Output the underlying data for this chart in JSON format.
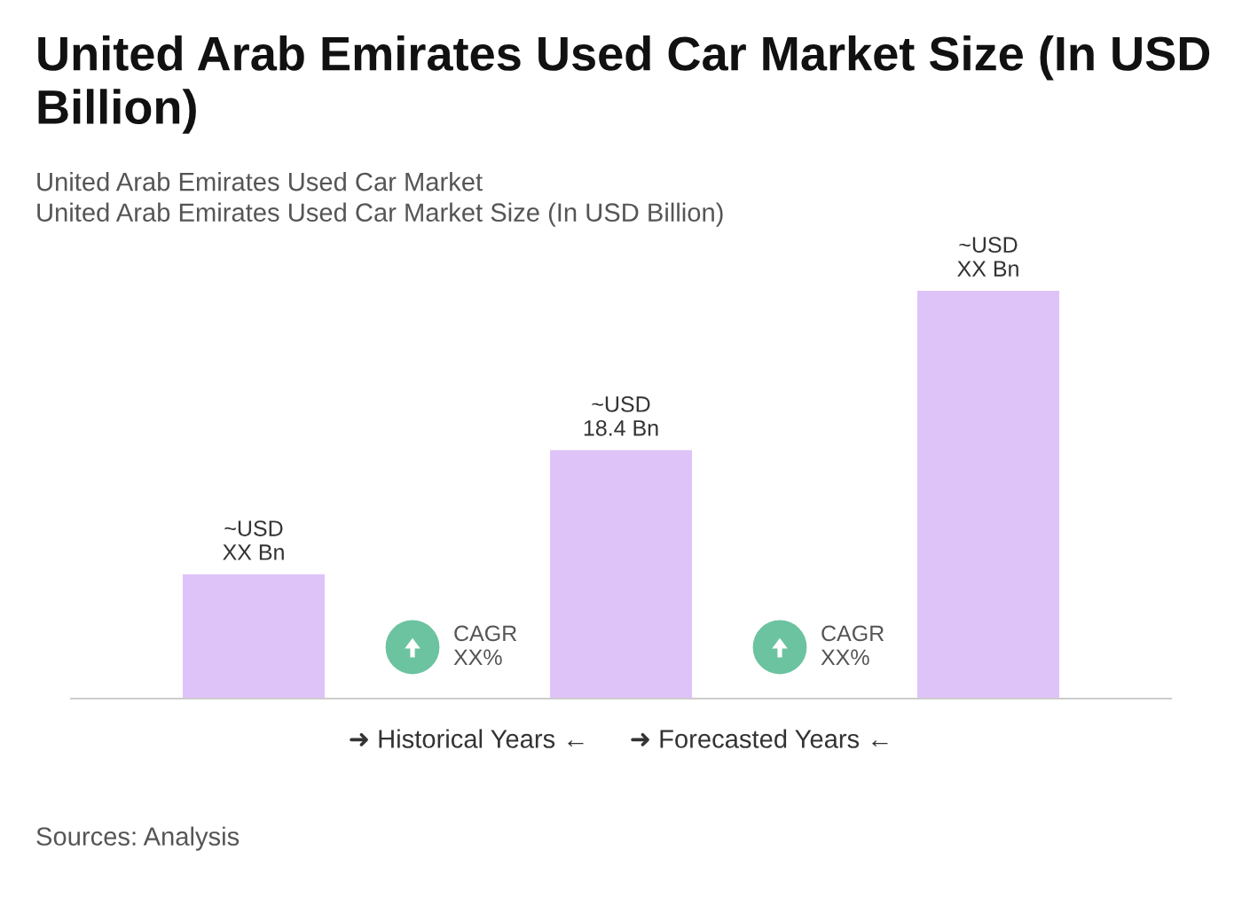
{
  "chart_data": {
    "type": "bar",
    "title": "United Arab Emirates Used Car Market Size (In USD Billion)",
    "subtitle": "United Arab Emirates Used Car Market\nUnited Arab Emirates Used Car Market Size (In USD Billion)",
    "categories": [
      null,
      null,
      null
    ],
    "tick_labels": false,
    "values": [
      9.2,
      18.4,
      30.2
    ],
    "color": "#dec3f8",
    "value_labels": [
      "~USD\nXX Bn",
      "~USD\n18.4 Bn",
      "~USD\nXX Bn"
    ],
    "annotations": [
      "CAGR\nXX%",
      "CAGR\nXX%",
      "➜ Historical Years ←",
      "➜ Forecasted Years ←",
      "Sources: Analysis"
    ],
    "grid": false,
    "legend": false
  }
}
